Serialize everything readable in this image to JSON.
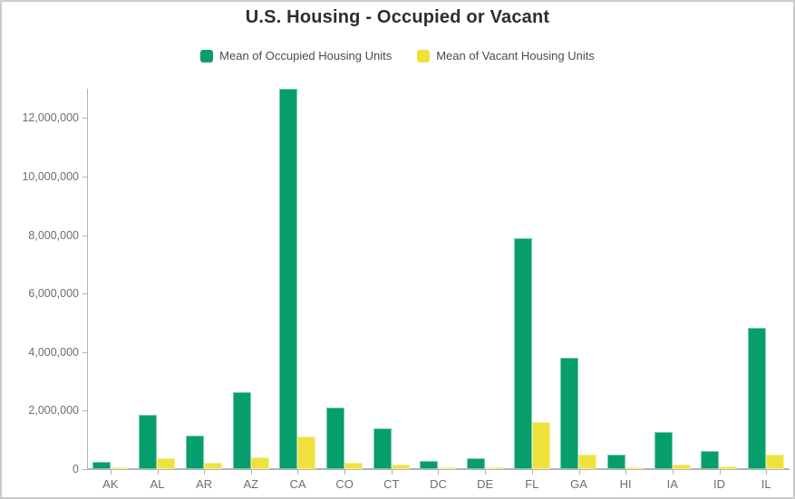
{
  "title": "U.S. Housing - Occupied or Vacant",
  "colors": {
    "occupied_fill": "#069e6c",
    "occupied_stroke": "#7ccbad",
    "vacant_fill": "#efe23c",
    "vacant_stroke": "#f5ee9b",
    "axis_line": "#b3b3b3",
    "axis_text": "#6e6e6e",
    "title_text": "#2e2e2e",
    "legend_text": "#4c4c4c",
    "card_border": "#cbcbcb"
  },
  "chart_data": {
    "type": "bar",
    "title": "U.S. Housing - Occupied or Vacant",
    "xlabel": "",
    "ylabel": "",
    "grid": false,
    "legend_position": "top",
    "ylim": [
      0,
      13000000
    ],
    "yticks": [
      0,
      2000000,
      4000000,
      6000000,
      8000000,
      10000000,
      12000000
    ],
    "categories": [
      "AK",
      "AL",
      "AR",
      "AZ",
      "CA",
      "CO",
      "CT",
      "DC",
      "DE",
      "FL",
      "GA",
      "HI",
      "IA",
      "ID",
      "IL"
    ],
    "series": [
      {
        "name": "Mean of Occupied Housing Units",
        "color": "#069e6c",
        "stroke": "#7ccbad",
        "values": [
          250000,
          1850000,
          1160000,
          2620000,
          13000000,
          2090000,
          1380000,
          290000,
          360000,
          7880000,
          3810000,
          480000,
          1280000,
          630000,
          4830000
        ]
      },
      {
        "name": "Mean of Vacant Housing Units",
        "color": "#efe23c",
        "stroke": "#f5ee9b",
        "values": [
          50000,
          370000,
          220000,
          410000,
          1100000,
          230000,
          145000,
          40000,
          75000,
          1620000,
          510000,
          75000,
          145000,
          85000,
          490000
        ]
      }
    ]
  }
}
